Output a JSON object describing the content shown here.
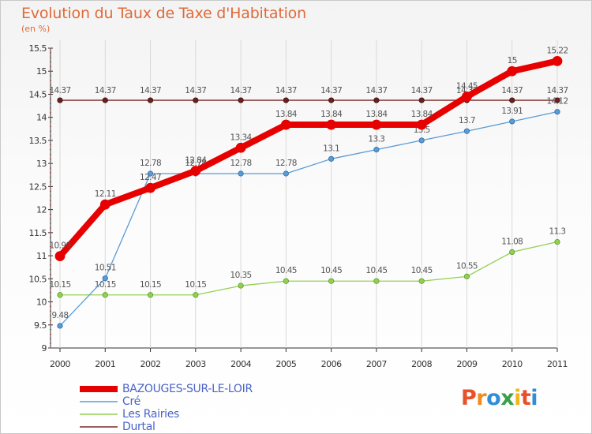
{
  "colors": {
    "main": "#e60000",
    "cre": "#5b9bd5",
    "rairies": "#92d050",
    "durtal": "#7a2a2a",
    "axis": "#333333",
    "grid": "#d9d9d9",
    "title": "#e06a3a",
    "legend_text": "#4a63c8"
  },
  "logo": {
    "text": "Proxiti",
    "letter_colors": [
      "#e8502a",
      "#f08c1e",
      "#2f8ed8",
      "#3aa047",
      "#f0b81e",
      "#e8502a",
      "#2f8ed8"
    ]
  },
  "chart_data": {
    "type": "line",
    "title": "Evolution du Taux de Taxe d'Habitation",
    "subtitle": "(en %)",
    "xlabel": "",
    "ylabel": "",
    "x": [
      "2000",
      "2001",
      "2002",
      "2003",
      "2004",
      "2005",
      "2006",
      "2007",
      "2008",
      "2009",
      "2010",
      "2011"
    ],
    "ylim": [
      9,
      15.5
    ],
    "yticks": [
      "9",
      "9.5",
      "10",
      "10.5",
      "11",
      "11.5",
      "12",
      "12.5",
      "13",
      "13.5",
      "14",
      "14.5",
      "15",
      "15.5"
    ],
    "legend_position": "bottom-left",
    "series": [
      {
        "key": "durtal",
        "name": "Durtal",
        "values": [
          14.37,
          14.37,
          14.37,
          14.37,
          14.37,
          14.37,
          14.37,
          14.37,
          14.37,
          14.37,
          14.37,
          14.37
        ],
        "labels": [
          "14.37",
          "14.37",
          "14.37",
          "14.37",
          "14.37",
          "14.37",
          "14.37",
          "14.37",
          "14.37",
          "14.37",
          "14.37",
          "14.37"
        ]
      },
      {
        "key": "rairies",
        "name": "Les Rairies",
        "values": [
          10.15,
          10.15,
          10.15,
          10.15,
          10.35,
          10.45,
          10.45,
          10.45,
          10.45,
          10.55,
          11.08,
          11.3
        ],
        "labels": [
          "10.15",
          "10.15",
          "10.15",
          "10.15",
          "10.35",
          "10.45",
          "10.45",
          "10.45",
          "10.45",
          "10.55",
          "11.08",
          "11.3"
        ]
      },
      {
        "key": "cre",
        "name": "Cré",
        "values": [
          9.48,
          10.51,
          12.78,
          12.78,
          12.78,
          12.78,
          13.1,
          13.3,
          13.5,
          13.7,
          13.91,
          14.12
        ],
        "labels": [
          "9.48",
          "10.51",
          "12.78",
          "12.78",
          "12.78",
          "12.78",
          "13.1",
          "13.3",
          "13.5",
          "13.7",
          "13.91",
          "14.12"
        ]
      },
      {
        "key": "main",
        "name": "BAZOUGES-SUR-LE-LOIR",
        "values": [
          10.99,
          12.11,
          12.47,
          12.84,
          13.34,
          13.84,
          13.84,
          13.84,
          13.84,
          14.45,
          15.0,
          15.22
        ],
        "labels": [
          "10.99",
          "12.11",
          "12.47",
          "12.84",
          "13.34",
          "13.84",
          "13.84",
          "13.84",
          "13.84",
          "14.45",
          "15",
          "15.22"
        ]
      }
    ],
    "legend": [
      {
        "key": "main",
        "name": "BAZOUGES-SUR-LE-LOIR"
      },
      {
        "key": "cre",
        "name": "Cré"
      },
      {
        "key": "rairies",
        "name": "Les Rairies"
      },
      {
        "key": "durtal",
        "name": "Durtal"
      }
    ]
  }
}
